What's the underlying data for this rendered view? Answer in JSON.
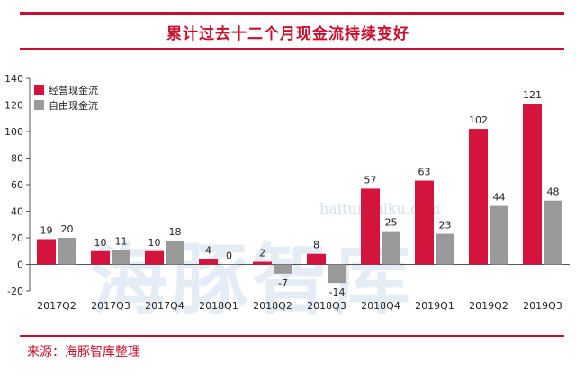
{
  "title": "累计过去十二个月现金流持续变好",
  "source": "来源：海豚智库整理",
  "watermark": {
    "text": "海豚智库",
    "url": "haitunzhiku.com"
  },
  "colors": {
    "accent": "#c8102e",
    "operating": "#d4143c",
    "free": "#999999"
  },
  "legend": [
    {
      "label": "经营现金流",
      "color": "#d4143c"
    },
    {
      "label": "自由现金流",
      "color": "#999999"
    }
  ],
  "chart_data": {
    "type": "bar",
    "categories": [
      "2017Q2",
      "2017Q3",
      "2017Q4",
      "2018Q1",
      "2018Q2",
      "2018Q3",
      "2018Q4",
      "2019Q1",
      "2019Q2",
      "2019Q3"
    ],
    "series": [
      {
        "name": "经营现金流",
        "values": [
          19,
          10,
          10,
          4,
          2,
          8,
          57,
          63,
          102,
          121
        ]
      },
      {
        "name": "自由现金流",
        "values": [
          20,
          11,
          18,
          0,
          -7,
          -14,
          25,
          23,
          44,
          48
        ]
      }
    ],
    "ylim": [
      -20,
      140
    ],
    "yticks": [
      -20,
      0,
      20,
      40,
      60,
      80,
      100,
      120,
      140
    ],
    "data_labels": true,
    "grid": false,
    "legend_position": "top-left"
  }
}
